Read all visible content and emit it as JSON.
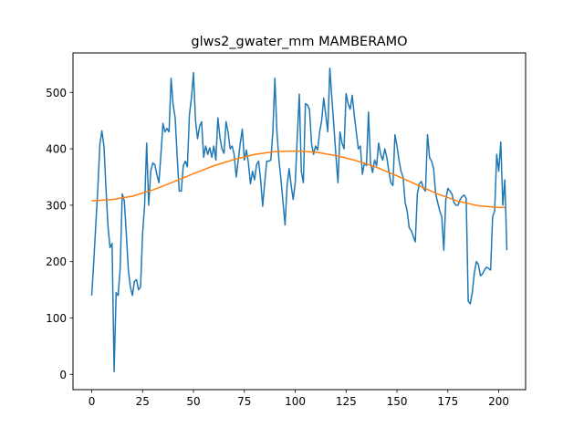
{
  "chart_data": {
    "type": "line",
    "title": "glws2_gwater_mm MAMBERAMO",
    "xlabel": "",
    "ylabel": "",
    "xlim": [
      -9.2,
      213.2
    ],
    "ylim": [
      -27,
      570
    ],
    "xticks": [
      0,
      25,
      50,
      75,
      100,
      125,
      150,
      175,
      200
    ],
    "yticks": [
      0,
      100,
      200,
      300,
      400,
      500
    ],
    "grid": false,
    "series": [
      {
        "color": "#1f77b4",
        "x_start": 0,
        "values": [
          140,
          200,
          265,
          330,
          408,
          432,
          405,
          330,
          262,
          225,
          232,
          5,
          145,
          140,
          190,
          320,
          308,
          250,
          185,
          155,
          140,
          165,
          168,
          150,
          155,
          250,
          300,
          410,
          300,
          360,
          375,
          372,
          355,
          340,
          390,
          445,
          430,
          436,
          430,
          525,
          478,
          455,
          385,
          325,
          325,
          370,
          378,
          368,
          460,
          490,
          535,
          450,
          418,
          440,
          448,
          385,
          405,
          390,
          402,
          385,
          405,
          380,
          455,
          420,
          400,
          392,
          448,
          430,
          400,
          405,
          390,
          350,
          380,
          410,
          435,
          380,
          398,
          375,
          338,
          360,
          345,
          372,
          378,
          345,
          298,
          340,
          378,
          378,
          380,
          430,
          525,
          430,
          380,
          345,
          305,
          265,
          335,
          365,
          335,
          310,
          340,
          420,
          497,
          360,
          340,
          480,
          478,
          470,
          410,
          390,
          405,
          398,
          430,
          450,
          490,
          460,
          430,
          543,
          490,
          440,
          388,
          340,
          430,
          410,
          400,
          498,
          480,
          470,
          495,
          460,
          430,
          400,
          405,
          355,
          375,
          370,
          465,
          375,
          358,
          380,
          370,
          410,
          390,
          380,
          400,
          385,
          360,
          340,
          335,
          425,
          405,
          380,
          360,
          350,
          305,
          290,
          260,
          255,
          245,
          235,
          320,
          338,
          342,
          330,
          325,
          425,
          385,
          378,
          365,
          320,
          305,
          290,
          280,
          220,
          310,
          330,
          325,
          320,
          305,
          300,
          300,
          310,
          315,
          318,
          312,
          130,
          125,
          145,
          180,
          200,
          195,
          175,
          178,
          185,
          190,
          188,
          185,
          280,
          290,
          390,
          360,
          412,
          300,
          345,
          220
        ]
      },
      {
        "color": "#ff7f0e",
        "x": [
          0,
          10,
          20,
          30,
          40,
          50,
          60,
          70,
          80,
          90,
          100,
          110,
          120,
          130,
          140,
          150,
          160,
          170,
          180,
          190,
          200,
          203
        ],
        "values": [
          308,
          310,
          316,
          327,
          341,
          356,
          370,
          381,
          390,
          395,
          396,
          394,
          388,
          379,
          367,
          352,
          336,
          320,
          307,
          299,
          296,
          296
        ]
      }
    ]
  }
}
